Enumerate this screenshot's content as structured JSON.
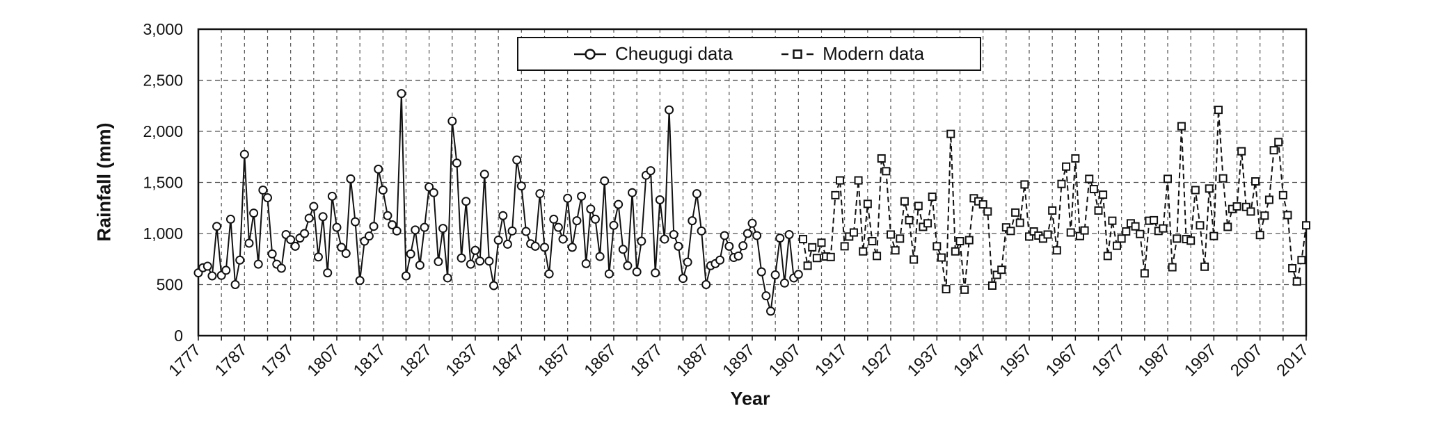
{
  "colors": {
    "foreground": "#111111",
    "background": "#ffffff",
    "gridline": "#555555"
  },
  "chart_data": {
    "type": "line",
    "title": "",
    "xlabel": "Year",
    "ylabel": "Rainfall (mm)",
    "x_range": [
      1777,
      2017
    ],
    "ylim": [
      0,
      3000
    ],
    "y_tick_values": [
      0,
      500,
      1000,
      1500,
      2000,
      2500,
      3000
    ],
    "y_tick_labels": [
      "0",
      "500",
      "1,000",
      "1,500",
      "2,000",
      "2,500",
      "3,000"
    ],
    "x_tick_years": [
      1777,
      1787,
      1797,
      1807,
      1817,
      1827,
      1837,
      1847,
      1857,
      1867,
      1877,
      1887,
      1897,
      1907,
      1917,
      1927,
      1937,
      1947,
      1957,
      1967,
      1977,
      1987,
      1997,
      2007,
      2017
    ],
    "grid": "dashed vertical every 5 years, dashed horizontal every 500 mm",
    "legend_position": "top-center inside plot, boxed",
    "series": [
      {
        "name": "Cheugugi data",
        "marker": "circle",
        "line_style": "solid",
        "start_year": 1777,
        "values": [
          615,
          665,
          680,
          585,
          1070,
          590,
          640,
          1140,
          500,
          740,
          1775,
          905,
          1200,
          700,
          1425,
          1350,
          800,
          700,
          660,
          990,
          940,
          875,
          955,
          1000,
          1150,
          1265,
          770,
          1165,
          615,
          1365,
          1060,
          865,
          805,
          1535,
          1115,
          540,
          925,
          975,
          1070,
          1630,
          1425,
          1175,
          1085,
          1025,
          2370,
          585,
          800,
          1035,
          690,
          1060,
          1455,
          1400,
          725,
          1050,
          565,
          2100,
          1690,
          760,
          1315,
          700,
          835,
          730,
          1580,
          730,
          490,
          935,
          1175,
          895,
          1025,
          1720,
          1465,
          1020,
          900,
          875,
          1390,
          865,
          605,
          1140,
          1060,
          945,
          1345,
          865,
          1125,
          1365,
          705,
          1240,
          1140,
          775,
          1515,
          605,
          1080,
          1285,
          845,
          685,
          1400,
          625,
          925,
          1570,
          1615,
          615,
          1330,
          945,
          2210,
          990,
          875,
          560,
          720,
          1125,
          1390,
          1025,
          500,
          685,
          705,
          740,
          980,
          875,
          765,
          780,
          880,
          1000,
          1100,
          980,
          625,
          390,
          240,
          595,
          955,
          515,
          990,
          565,
          600
        ]
      },
      {
        "name": "Modern data",
        "marker": "square",
        "line_style": "dashed",
        "start_year": 1908,
        "values": [
          945,
          685,
          865,
          760,
          910,
          775,
          770,
          1375,
          1520,
          875,
          970,
          1010,
          1520,
          825,
          1290,
          925,
          780,
          1735,
          1610,
          990,
          835,
          950,
          1315,
          1130,
          745,
          1270,
          1065,
          1100,
          1360,
          875,
          765,
          455,
          1975,
          825,
          925,
          450,
          935,
          1345,
          1315,
          1285,
          1215,
          490,
          595,
          645,
          1060,
          1025,
          1205,
          1105,
          1480,
          970,
          1020,
          980,
          950,
          990,
          1225,
          835,
          1485,
          1655,
          1010,
          1735,
          975,
          1030,
          1535,
          1435,
          1225,
          1380,
          780,
          1125,
          880,
          950,
          1020,
          1100,
          1070,
          995,
          610,
          1125,
          1130,
          1025,
          1050,
          1535,
          670,
          950,
          2050,
          945,
          930,
          1425,
          1080,
          675,
          1440,
          975,
          2210,
          1540,
          1065,
          1240,
          1265,
          1805,
          1260,
          1215,
          1510,
          985,
          1175,
          1330,
          1815,
          1895,
          1375,
          1180,
          660,
          530,
          740,
          1080
        ]
      }
    ]
  }
}
